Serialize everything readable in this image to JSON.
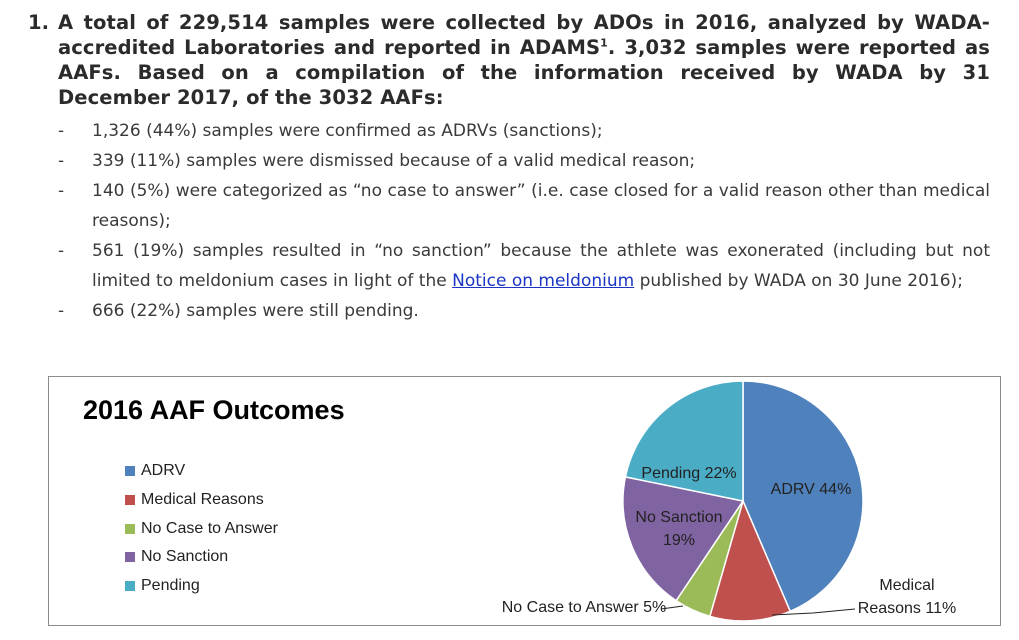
{
  "item": {
    "number": "1.",
    "heading_pre": "A total of 229,514 samples were collected by ADOs in 2016, analyzed by WADA-accredited Laboratories and reported in ADAMS",
    "heading_sup": "1",
    "heading_post": ". 3,032 samples were reported as AAFs. Based on a compilation of the information received by WADA by 31 December 2017, of the 3032 AAFs:",
    "bullets": [
      {
        "dash": "-",
        "text": "1,326 (44%) samples were confirmed as ADRVs (sanctions);"
      },
      {
        "dash": "-",
        "text": "339 (11%) samples were dismissed because of a valid medical reason;"
      },
      {
        "dash": "-",
        "text": "140 (5%) were categorized as “no case to answer” (i.e. case closed for a valid reason other than medical reasons);"
      },
      {
        "dash": "-",
        "pre": "561 (19%) samples resulted in “no sanction” because the athlete was exonerated (including but not limited to meldonium cases in light of the ",
        "link": "Notice on meldonium",
        "post": " published by WADA on 30 June 2016);"
      },
      {
        "dash": "-",
        "text": "666 (22%) samples were still pending."
      }
    ]
  },
  "chart_data": {
    "type": "pie",
    "title": "2016 AAF Outcomes",
    "legend_position": "left",
    "categories": [
      "ADRV",
      "Medical Reasons",
      "No Case to Answer",
      "No Sanction",
      "Pending"
    ],
    "values": [
      44,
      11,
      5,
      19,
      22
    ],
    "colors": [
      "#4f81bd",
      "#c0504d",
      "#9bbb59",
      "#8064a2",
      "#4bacc6"
    ],
    "data_labels": [
      [
        "ADRV 44%"
      ],
      [
        "Medical",
        "Reasons 11%"
      ],
      [
        "No Case to Answer 5%"
      ],
      [
        "No Sanction",
        "19%"
      ],
      [
        "Pending 22%"
      ]
    ]
  }
}
